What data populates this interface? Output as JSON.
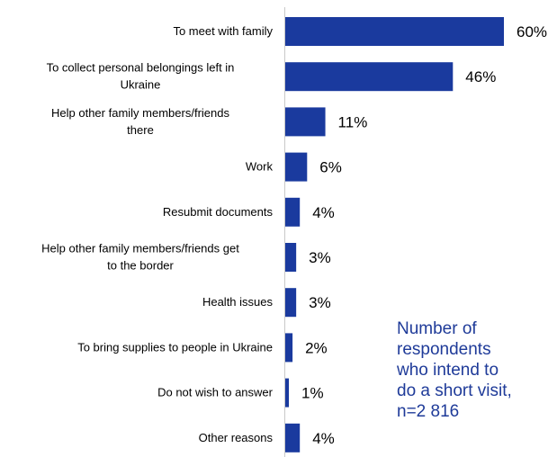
{
  "chart_data": {
    "type": "bar",
    "orientation": "horizontal",
    "categories": [
      [
        "To meet with family"
      ],
      [
        "To collect personal belongings left in",
        "Ukraine"
      ],
      [
        "Help other family members/friends",
        "there"
      ],
      [
        "Work"
      ],
      [
        "Resubmit documents"
      ],
      [
        "Help other family members/friends get",
        "to the border"
      ],
      [
        "Health issues"
      ],
      [
        "To bring supplies to people in Ukraine"
      ],
      [
        "Do not wish to answer"
      ],
      [
        "Other reasons"
      ]
    ],
    "values": [
      60,
      46,
      11,
      6,
      4,
      3,
      3,
      2,
      1,
      4
    ],
    "value_labels": [
      "60%",
      "46%",
      "11%",
      "6%",
      "4%",
      "3%",
      "3%",
      "2%",
      "1%",
      "4%"
    ],
    "xlim": [
      0,
      60
    ],
    "grid": false,
    "legend": "none",
    "bar_color": "#1a3a9e",
    "axis_color": "#c8c8c8",
    "annotation": [
      "Number of",
      "respondents",
      "who intend to",
      "do a short visit,",
      "n=2 816"
    ],
    "annotation_color": "#1f3b99"
  }
}
